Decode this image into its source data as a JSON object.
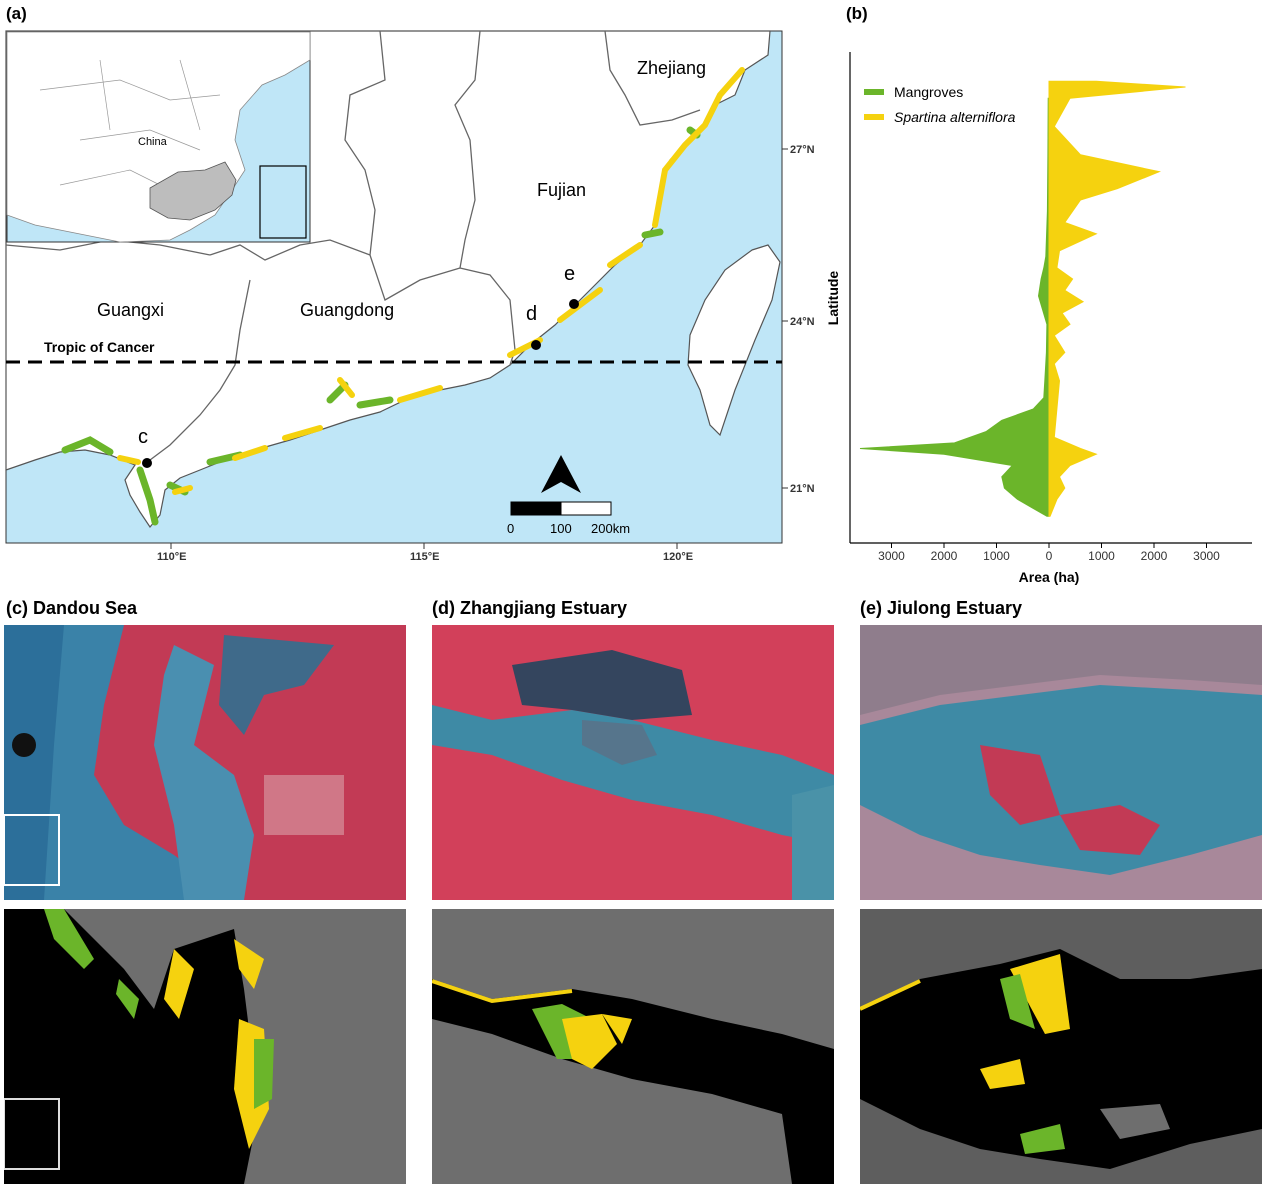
{
  "panel_a": {
    "letter": "(a)",
    "inset_label": "China",
    "provinces": [
      "Zhejiang",
      "Fujian",
      "Guangdong",
      "Guangxi"
    ],
    "tropic_label": "Tropic of Cancer",
    "site_markers": [
      "c",
      "d",
      "e"
    ],
    "lat_ticks": [
      "27°N",
      "24°N",
      "21°N"
    ],
    "lon_ticks": [
      "110°E",
      "115°E",
      "120°E"
    ],
    "scale_bar": [
      "0",
      "100",
      "200km"
    ],
    "colors": {
      "sea": "#bfe6f7",
      "land": "#ffffff",
      "border": "#666666",
      "mangrove": "#6bb52a",
      "spartina": "#f5d20f"
    }
  },
  "panel_b": {
    "letter": "(b)",
    "legend": [
      "Mangroves",
      "Spartina alterniflora"
    ]
  },
  "chart_data": {
    "type": "area",
    "title": "",
    "xlabel": "Area (ha)",
    "ylabel": "Latitude",
    "x_tick_labels": [
      "3000",
      "2000",
      "1000",
      "0",
      "1000",
      "2000",
      "3000"
    ],
    "xlim": [
      -3800,
      3800
    ],
    "ylim": [
      20.5,
      28.5
    ],
    "legend_position": "top-left",
    "series": [
      {
        "name": "Mangroves",
        "color": "#6bb52a",
        "direction": "left",
        "points": [
          [
            20.6,
            40
          ],
          [
            20.9,
            600
          ],
          [
            21.1,
            850
          ],
          [
            21.3,
            900
          ],
          [
            21.5,
            700
          ],
          [
            21.7,
            2000
          ],
          [
            21.8,
            3600
          ],
          [
            21.9,
            1800
          ],
          [
            22.1,
            1200
          ],
          [
            22.3,
            900
          ],
          [
            22.5,
            300
          ],
          [
            22.7,
            100
          ],
          [
            23.0,
            80
          ],
          [
            23.5,
            50
          ],
          [
            24.0,
            40
          ],
          [
            24.5,
            200
          ],
          [
            24.8,
            150
          ],
          [
            25.0,
            100
          ],
          [
            25.2,
            60
          ],
          [
            26.0,
            30
          ],
          [
            27.0,
            20
          ],
          [
            28.0,
            15
          ]
        ]
      },
      {
        "name": "Spartina alterniflora",
        "color": "#f5d20f",
        "direction": "right",
        "points": [
          [
            20.6,
            20
          ],
          [
            20.9,
            150
          ],
          [
            21.1,
            300
          ],
          [
            21.3,
            200
          ],
          [
            21.5,
            400
          ],
          [
            21.7,
            900
          ],
          [
            21.8,
            600
          ],
          [
            22.0,
            100
          ],
          [
            22.5,
            150
          ],
          [
            23.0,
            200
          ],
          [
            23.3,
            100
          ],
          [
            23.5,
            300
          ],
          [
            23.8,
            100
          ],
          [
            24.0,
            400
          ],
          [
            24.2,
            250
          ],
          [
            24.4,
            650
          ],
          [
            24.6,
            300
          ],
          [
            24.8,
            450
          ],
          [
            25.0,
            150
          ],
          [
            25.3,
            200
          ],
          [
            25.6,
            900
          ],
          [
            25.8,
            300
          ],
          [
            26.2,
            600
          ],
          [
            26.4,
            1300
          ],
          [
            26.7,
            2100
          ],
          [
            27.0,
            600
          ],
          [
            27.5,
            100
          ],
          [
            28.0,
            400
          ],
          [
            28.2,
            2600
          ],
          [
            28.3,
            900
          ]
        ]
      }
    ]
  },
  "panels_lower": [
    {
      "title": "(c) Dandou Sea"
    },
    {
      "title": "(d) Zhangjiang Estuary"
    },
    {
      "title": "(e) Jiulong Estuary"
    }
  ]
}
